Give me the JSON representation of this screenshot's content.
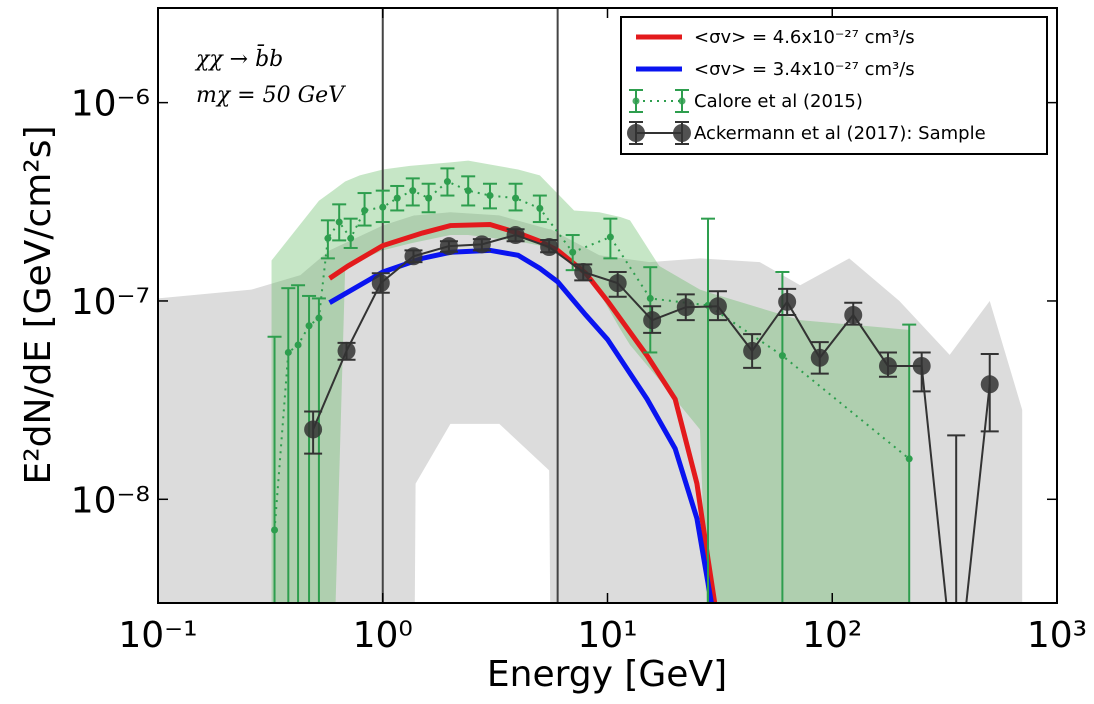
{
  "chart_data": {
    "type": "line",
    "xlabel": "Energy [GeV]",
    "ylabel": "E²dN/dE [GeV/cm²s]",
    "xscale": "log",
    "yscale": "log",
    "xlim": [
      0.1,
      1000
    ],
    "ylim": [
      3e-09,
      3e-06
    ],
    "xticks": [
      {
        "value": 0.1,
        "label": "10⁻¹"
      },
      {
        "value": 1,
        "label": "10⁰"
      },
      {
        "value": 10,
        "label": "10¹"
      },
      {
        "value": 100,
        "label": "10²"
      },
      {
        "value": 1000,
        "label": "10³"
      }
    ],
    "yticks": [
      {
        "value": 1e-08,
        "label": "10⁻⁸"
      },
      {
        "value": 1e-07,
        "label": "10⁻⁷"
      },
      {
        "value": 1e-06,
        "label": "10⁻⁶"
      }
    ],
    "annotations": [
      "χχ → b̄b",
      "mχ = 50 GeV"
    ],
    "vlines": [
      1,
      6
    ],
    "legend": "upper right",
    "bands": [
      {
        "color": "#dcdcdc",
        "x": [
          0.1,
          0.26,
          0.43,
          0.58,
          1.0,
          1.38,
          1.4,
          2.0,
          3.3,
          5.5,
          5.6,
          9.2,
          15.4,
          25.8,
          47.6,
          72,
          119,
          199,
          333,
          502,
          700
        ],
        "upper": [
          1.03e-07,
          1.14e-07,
          1.35e-07,
          1.8e-07,
          2.4e-07,
          2.7e-07,
          2.7e-07,
          2.8e-07,
          2.7e-07,
          2.3e-07,
          2.3e-07,
          1.7e-07,
          1.57e-07,
          1.64e-07,
          1.57e-07,
          1.2e-07,
          1.64e-07,
          1e-07,
          5.35e-08,
          1e-07,
          2.83e-08
        ],
        "lower": [
          1e-09,
          1e-09,
          1e-09,
          1e-09,
          1e-09,
          1e-09,
          1.2e-08,
          2.4e-08,
          2.4e-08,
          1.4e-08,
          1e-09,
          1e-09,
          1e-09,
          1e-09,
          1e-09,
          1e-09,
          1e-09,
          1e-09,
          1e-09,
          1e-09,
          1e-09
        ]
      },
      {
        "color": "#5cb85c",
        "x": [
          0.32,
          0.52,
          0.6,
          0.68,
          0.79,
          1,
          1.32,
          2,
          2.4,
          4,
          5,
          7.1,
          9.2,
          11.4,
          12.6,
          17,
          25.8,
          28.5,
          72,
          220
        ],
        "upper": [
          1.6e-07,
          3.2e-07,
          3.6e-07,
          4e-07,
          4.3e-07,
          4.6e-07,
          4.8e-07,
          5e-07,
          5.1e-07,
          4.6e-07,
          4.3e-07,
          2.86e-07,
          2.8e-07,
          2.65e-07,
          2.55e-07,
          1.5e-07,
          1.14e-07,
          1.1e-07,
          8e-08,
          7.15e-08
        ],
        "lower": [
          1e-09,
          1e-09,
          1e-09,
          1.43e-07,
          1.6e-07,
          1.8e-07,
          1.95e-07,
          2.15e-07,
          2.15e-07,
          2e-07,
          1.9e-07,
          1.6e-07,
          1.1e-07,
          7.2e-08,
          6e-08,
          4e-08,
          2.25e-08,
          1e-09,
          1e-09,
          1e-09
        ]
      }
    ],
    "series": [
      {
        "name": "<σv> = 4.6x10⁻²⁷ cm³/s",
        "color": "#e31a1c",
        "style": "solid",
        "x": [
          0.58,
          0.7,
          1,
          1.5,
          2,
          3,
          4,
          5,
          6,
          8,
          10,
          15,
          20,
          25,
          28,
          30
        ],
        "values": [
          1.3e-07,
          1.5e-07,
          1.9e-07,
          2.2e-07,
          2.4e-07,
          2.43e-07,
          2.2e-07,
          2e-07,
          1.8e-07,
          1.38e-07,
          1e-07,
          5.3e-08,
          3.2e-08,
          1.2e-08,
          5e-09,
          3e-09
        ]
      },
      {
        "name": "<σv> = 3.4x10⁻²⁷ cm³/s",
        "color": "#0a14f0",
        "style": "solid",
        "x": [
          0.58,
          1,
          1.5,
          2,
          3,
          4,
          5,
          6,
          8,
          10,
          15,
          20,
          25,
          29
        ],
        "values": [
          9.8e-08,
          1.4e-07,
          1.64e-07,
          1.76e-07,
          1.8e-07,
          1.7e-07,
          1.46e-07,
          1.25e-07,
          8.5e-08,
          6.4e-08,
          3.2e-08,
          1.8e-08,
          8e-09,
          3e-09
        ]
      },
      {
        "name": "Calore et al (2015)",
        "color": "#2e9e4e",
        "style": "dotted",
        "x": [
          0.33,
          0.38,
          0.42,
          0.47,
          0.52,
          0.57,
          0.64,
          0.72,
          0.83,
          1.0,
          1.16,
          1.36,
          1.6,
          1.94,
          2.4,
          3.0,
          3.9,
          5.0,
          7.0,
          10.3,
          15.5,
          28,
          60,
          220
        ],
        "values": [
          7e-09,
          5.5e-08,
          6e-08,
          7.5e-08,
          8.2e-08,
          2.07e-07,
          2.5e-07,
          2.07e-07,
          2.86e-07,
          2.97e-07,
          3.3e-07,
          3.6e-07,
          3.3e-07,
          4e-07,
          3.6e-07,
          3.4e-07,
          3.3e-07,
          2.93e-07,
          1.76e-07,
          2.1e-07,
          1.03e-07,
          9.5e-08,
          5.3e-08,
          1.6e-08
        ],
        "lower": [
          1e-09,
          1e-09,
          1e-09,
          1e-09,
          1e-09,
          1.64e-07,
          2.02e-07,
          1.85e-07,
          2.4e-07,
          2.5e-07,
          2.86e-07,
          3.03e-07,
          2.8e-07,
          3.4e-07,
          3.03e-07,
          2.93e-07,
          2.86e-07,
          2.5e-07,
          1.43e-07,
          1.64e-07,
          5.5e-08,
          1e-09,
          1e-09,
          1e-09
        ],
        "upper": [
          6.6e-08,
          1.16e-07,
          1.2e-07,
          1.06e-07,
          1.03e-07,
          2.55e-07,
          3.07e-07,
          2.6e-07,
          3.5e-07,
          3.6e-07,
          3.8e-07,
          4.15e-07,
          3.9e-07,
          4.66e-07,
          4.25e-07,
          3.9e-07,
          3.9e-07,
          3.4e-07,
          2.15e-07,
          2.6e-07,
          1.48e-07,
          2.6e-07,
          1.4e-07,
          7.6e-08
        ]
      },
      {
        "name": "Ackermann et al (2017): Sample",
        "color": "#333333",
        "style": "marker",
        "x": [
          0.49,
          0.69,
          0.98,
          1.37,
          1.97,
          2.76,
          3.9,
          5.5,
          7.8,
          11.1,
          15.8,
          22.3,
          31,
          44,
          63,
          88,
          124,
          177,
          250,
          356,
          502
        ],
        "values": [
          2.25e-08,
          5.6e-08,
          1.23e-07,
          1.68e-07,
          1.89e-07,
          1.93e-07,
          2.15e-07,
          1.87e-07,
          1.4e-07,
          1.23e-07,
          8e-08,
          9.3e-08,
          9.4e-08,
          5.6e-08,
          9.9e-08,
          5.17e-08,
          8.5e-08,
          4.7e-08,
          4.7e-08,
          1e-09,
          3.8e-08
        ],
        "lower": [
          1.7e-08,
          5.05e-08,
          1.1e-07,
          1.57e-07,
          1.77e-07,
          1.8e-07,
          2e-07,
          1.76e-07,
          1.27e-07,
          1.05e-07,
          6.9e-08,
          8e-08,
          8e-08,
          4.6e-08,
          8.5e-08,
          4.3e-08,
          7.6e-08,
          4.15e-08,
          3.5e-08,
          1e-09,
          2.2e-08
        ],
        "upper": [
          2.77e-08,
          6.15e-08,
          1.38e-07,
          1.8e-07,
          2e-07,
          2.05e-07,
          2.3e-07,
          2.03e-07,
          1.53e-07,
          1.4e-07,
          9.4e-08,
          1.08e-07,
          1.12e-07,
          6.8e-08,
          1.15e-07,
          6.2e-08,
          9.8e-08,
          5.5e-08,
          5.5e-08,
          2.1e-08,
          5.4e-08
        ]
      }
    ]
  }
}
